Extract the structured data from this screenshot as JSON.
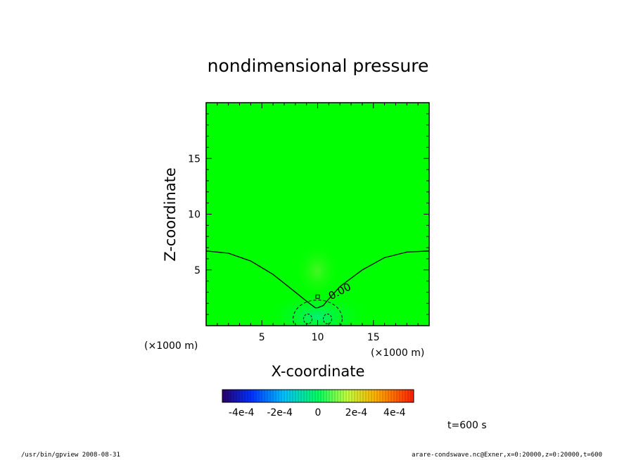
{
  "chart_data": {
    "type": "contour",
    "title": "nondimensional pressure",
    "xlabel": "X-coordinate",
    "ylabel": "Z-coordinate",
    "x_unit": "(×1000 m)",
    "y_unit": "(×1000 m)",
    "xlim": [
      0,
      20
    ],
    "ylim": [
      0,
      20
    ],
    "x_ticks": [
      5,
      10,
      15
    ],
    "y_ticks": [
      5,
      10,
      15
    ],
    "background_color": "#00ff00",
    "zero_contour": {
      "label": "0.00",
      "x": [
        0,
        2,
        4,
        6,
        8,
        9,
        9.8,
        10,
        10.5,
        11,
        12,
        14,
        16,
        18,
        20
      ],
      "z": [
        6.7,
        6.5,
        5.8,
        4.6,
        3.0,
        2.2,
        1.6,
        1.6,
        1.8,
        2.4,
        3.5,
        5.0,
        6.1,
        6.6,
        6.7
      ]
    },
    "negative_region": {
      "center_x": 10,
      "center_z": 0.6,
      "half_width": 2.2,
      "height": 1.7
    },
    "colorbar": {
      "tick_labels": [
        "-4e-4",
        "-2e-4",
        "0",
        "2e-4",
        "4e-4"
      ],
      "range": [
        -0.0005,
        0.0005
      ]
    },
    "time_label": "t=600 s"
  },
  "footer": {
    "left": "/usr/bin/gpview 2008-08-31",
    "right": "arare-condswave.nc@Exner,x=0:20000,z=0:20000,t=600"
  },
  "colors": {
    "frame": "#000000",
    "field": "#00ff00"
  }
}
